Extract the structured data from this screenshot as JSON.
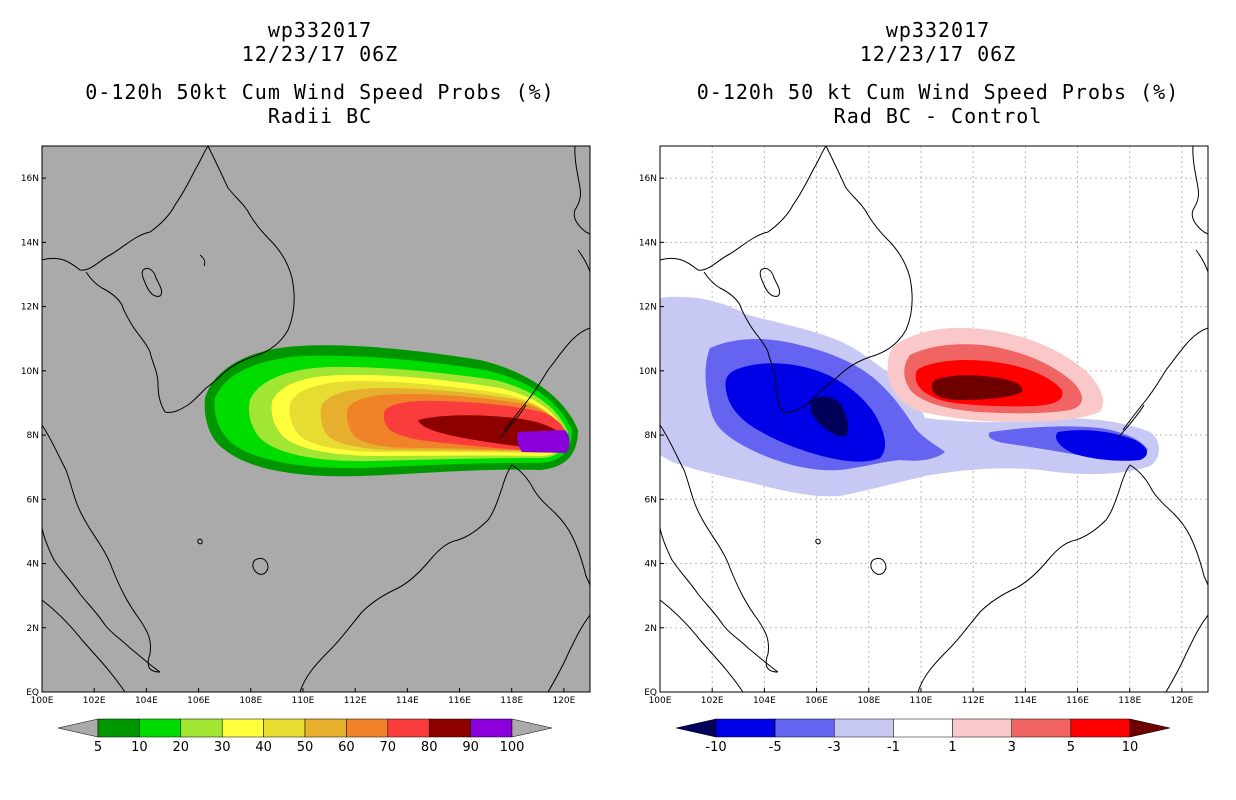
{
  "left_panel": {
    "storm_id": "wp332017",
    "datetime": "12/23/17 06Z",
    "title": "0-120h 50kt Cum Wind Speed Probs (%)",
    "subtitle": "Radii BC",
    "colorbar": {
      "labels": [
        "5",
        "10",
        "20",
        "30",
        "40",
        "50",
        "60",
        "70",
        "80",
        "90",
        "100"
      ],
      "colors": [
        "#009600",
        "#00dc00",
        "#a0e632",
        "#ffff3c",
        "#e6dc32",
        "#e6af2d",
        "#f08228",
        "#fa3c3c",
        "#8c0000",
        "#8c00dc"
      ],
      "overflow_colors": [
        "#aaaaaa",
        "#aaaaaa"
      ]
    }
  },
  "right_panel": {
    "storm_id": "wp332017",
    "datetime": "12/23/17 06Z",
    "title": "0-120h 50 kt Cum Wind Speed Probs (%)",
    "subtitle": "Rad BC - Control",
    "colorbar": {
      "labels": [
        "-10",
        "-5",
        "-3",
        "-1",
        "1",
        "3",
        "5",
        "10"
      ],
      "colors": [
        "#0000e6",
        "#6464f0",
        "#c8c8f5",
        "#ffffff",
        "#fac8c8",
        "#f06464",
        "#ff0000"
      ],
      "overflow_colors": [
        "#00005a",
        "#6e0000"
      ]
    }
  },
  "axes": {
    "lon_labels": [
      "100E",
      "102E",
      "104E",
      "106E",
      "108E",
      "110E",
      "112E",
      "114E",
      "116E",
      "118E",
      "120E"
    ],
    "lat_labels": [
      "EQ",
      "2N",
      "4N",
      "6N",
      "8N",
      "10N",
      "12N",
      "14N",
      "16N"
    ],
    "lon_range": [
      100,
      121
    ],
    "lat_range": [
      0,
      17
    ]
  },
  "map_colors": {
    "left_background": "#aaaaaa",
    "right_background": "#ffffff",
    "coastline": "#000000",
    "grid": "#bbbbbb"
  }
}
